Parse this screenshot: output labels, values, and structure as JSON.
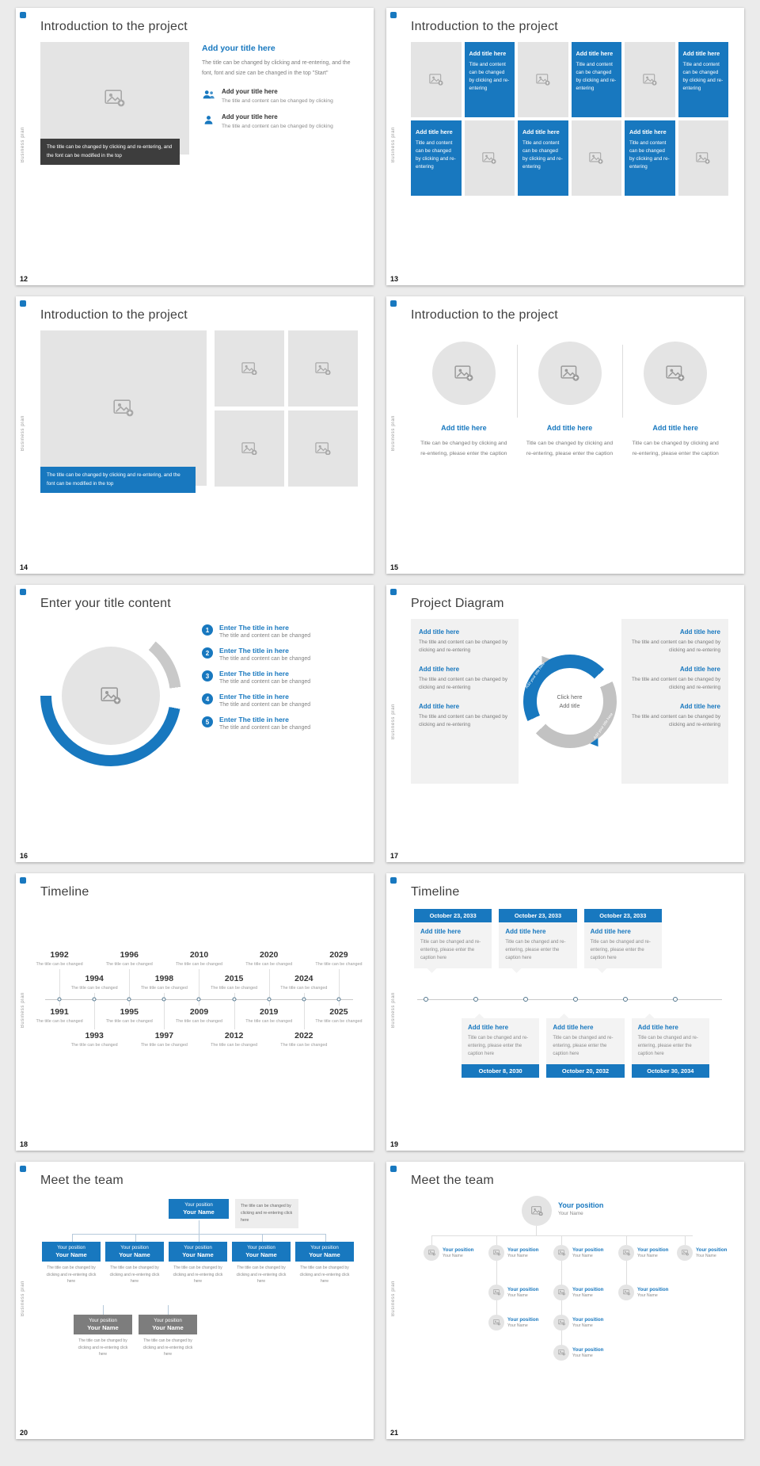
{
  "accent": "#1878bf",
  "sidebar": {
    "vertical_text": "Business plan"
  },
  "slides": {
    "s12": {
      "number": "12",
      "title": "Introduction to the project",
      "image_caption": "The title can be changed by clicking and re-entering, and the font can be modified in the top",
      "heading": "Add your title here",
      "paragraph": "The title can be changed by clicking and re-entering, and the font, font and size can be changed in the top \"Start\"",
      "items": [
        {
          "title": "Add your title here",
          "text": "The title and content can be changed by clicking"
        },
        {
          "title": "Add your title here",
          "text": "The title and content can be changed by clicking"
        }
      ]
    },
    "s13": {
      "number": "13",
      "title": "Introduction to the project",
      "cell_title": "Add title here",
      "cell_text": "Title and content can be changed by clicking and re-entering"
    },
    "s14": {
      "number": "14",
      "title": "Introduction to the project",
      "image_caption": "The title can be changed by clicking and re-entering, and the font can be modified in the top"
    },
    "s15": {
      "number": "15",
      "title": "Introduction to the project",
      "item_title": "Add title here",
      "item_text": "Title can be changed by clicking and re-entering, please enter the caption"
    },
    "s16": {
      "number": "16",
      "title": "Enter your title content",
      "nums": [
        "1",
        "2",
        "3",
        "4",
        "5"
      ],
      "item_title": "Enter The title in here",
      "item_text": "The title and content can be changed"
    },
    "s17": {
      "number": "17",
      "title": "Project Diagram",
      "item_title": "Add title here",
      "item_text": "The title and content can be changed by clicking and re-entering",
      "center_line1": "Click here",
      "center_line2": "Add title",
      "arc_label": "Add your title here"
    },
    "s18": {
      "number": "18",
      "title": "Timeline",
      "caption": "The title can be changed",
      "cols": [
        {
          "above": "1992",
          "below": "1991"
        },
        {
          "above": "1994",
          "below": "1993"
        },
        {
          "above": "1996",
          "below": "1995"
        },
        {
          "above": "1998",
          "below": "1997"
        },
        {
          "above": "2010",
          "below": "2009"
        },
        {
          "above": "2015",
          "below": "2012"
        },
        {
          "above": "2020",
          "below": "2019"
        },
        {
          "above": "2024",
          "below": "2022"
        },
        {
          "above": "2029",
          "below": "2025"
        }
      ]
    },
    "s19": {
      "number": "19",
      "title": "Timeline",
      "item_title": "Add title here",
      "item_text": "Title can be changed and re-entering, please enter the caption here",
      "top_dates": [
        "October 23, 2033",
        "October 23, 2033",
        "October 23, 2033"
      ],
      "bottom_dates": [
        "October 8, 2030",
        "October 20, 2032",
        "October 30, 2034"
      ]
    },
    "s20": {
      "number": "20",
      "title": "Meet the team",
      "position": "Your position",
      "name": "Your Name",
      "caption": "The title can be changed by clicking and re-entering click here",
      "note": "The title can be changed by clicking and re-entering click here"
    },
    "s21": {
      "number": "21",
      "title": "Meet the team",
      "position": "Your position",
      "name": "Your Name"
    }
  }
}
